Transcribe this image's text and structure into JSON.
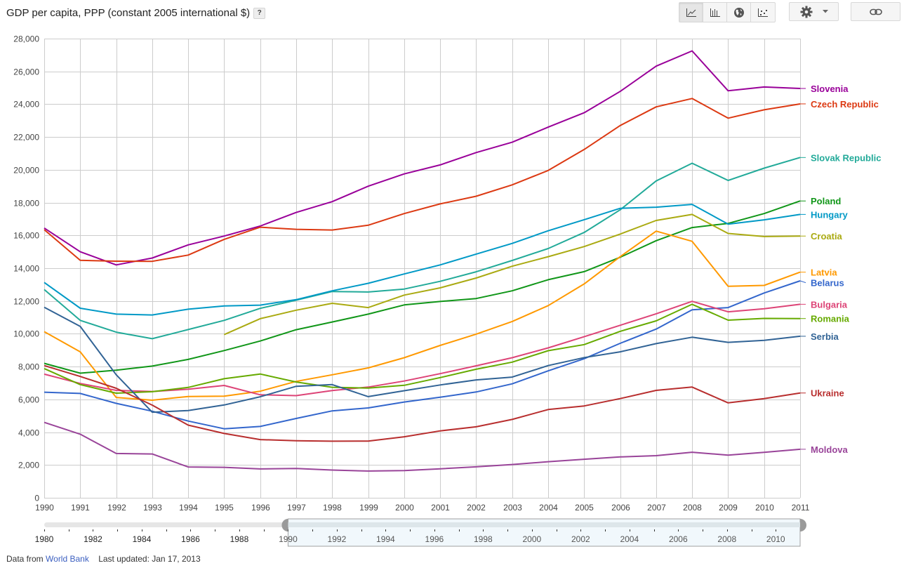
{
  "header": {
    "title": "GDP per capita, PPP (constant 2005 international $)",
    "help_label": "?"
  },
  "toolbar": {
    "chart_types": [
      {
        "name": "line-chart",
        "icon": "line-chart-icon",
        "active": true
      },
      {
        "name": "bar-chart",
        "icon": "bar-chart-icon",
        "active": false
      },
      {
        "name": "map",
        "icon": "globe-icon",
        "active": false
      },
      {
        "name": "scatter-chart",
        "icon": "scatter-chart-icon",
        "active": false
      }
    ],
    "settings_icon": "gear-icon",
    "dropdown_icon": "caret-down-icon",
    "link_icon": "link-icon"
  },
  "footer": {
    "source_prefix": "Data from",
    "source_link": "World Bank",
    "last_updated": "Last updated: Jan 17, 2013"
  },
  "timeline": {
    "range_start": 1980,
    "range_end": 2011,
    "selected_start": 1990,
    "selected_end": 2011,
    "labels": [
      "1980",
      "1982",
      "1984",
      "1986",
      "1988",
      "1990",
      "1992",
      "1994",
      "1996",
      "1998",
      "2000",
      "2002",
      "2004",
      "2006",
      "2008",
      "2010"
    ],
    "colors": {
      "track": "#e6e6e6",
      "selection_fill": "#f1f8fc",
      "selection_border": "#a0a0a0",
      "handle": "#9a9a9a"
    }
  },
  "chart_data": {
    "type": "line",
    "title": "GDP per capita, PPP (constant 2005 international $)",
    "xlabel": "",
    "ylabel": "",
    "x": [
      1990,
      1991,
      1992,
      1993,
      1994,
      1995,
      1996,
      1997,
      1998,
      1999,
      2000,
      2001,
      2002,
      2003,
      2004,
      2005,
      2006,
      2007,
      2008,
      2009,
      2010,
      2011
    ],
    "xlim": [
      1990,
      2011
    ],
    "ylim": [
      0,
      28000
    ],
    "yticks": [
      0,
      2000,
      4000,
      6000,
      8000,
      10000,
      12000,
      14000,
      16000,
      18000,
      20000,
      22000,
      24000,
      26000,
      28000
    ],
    "ytick_labels": [
      "0",
      "2,000",
      "4,000",
      "6,000",
      "8,000",
      "10,000",
      "12,000",
      "14,000",
      "16,000",
      "18,000",
      "20,000",
      "22,000",
      "24,000",
      "26,000",
      "28,000"
    ],
    "xtick_labels": [
      "1990",
      "1991",
      "1992",
      "1993",
      "1994",
      "1995",
      "1996",
      "1997",
      "1998",
      "1999",
      "2000",
      "2001",
      "2002",
      "2003",
      "2004",
      "2005",
      "2006",
      "2007",
      "2008",
      "2009",
      "2010",
      "2011"
    ],
    "grid": true,
    "legend": "right (inline labels at line ends)",
    "series": [
      {
        "name": "Slovenia",
        "color": "#990099",
        "values": [
          16450,
          15000,
          14200,
          14620,
          15420,
          15960,
          16570,
          17400,
          18060,
          19000,
          19750,
          20300,
          21050,
          21680,
          22600,
          23480,
          24780,
          26320,
          27250,
          24820,
          25050,
          24960
        ]
      },
      {
        "name": "Czech Republic",
        "color": "#dc3912",
        "values": [
          16350,
          14480,
          14430,
          14420,
          14800,
          15760,
          16500,
          16370,
          16330,
          16620,
          17330,
          17920,
          18390,
          19080,
          19960,
          21240,
          22700,
          23840,
          24350,
          23150,
          23660,
          24020
        ]
      },
      {
        "name": "Slovak Republic",
        "color": "#22aa99",
        "values": [
          12700,
          10820,
          10100,
          9700,
          10260,
          10820,
          11550,
          12050,
          12580,
          12550,
          12730,
          13200,
          13780,
          14470,
          15200,
          16180,
          17560,
          19320,
          20400,
          19350,
          20100,
          20750
        ]
      },
      {
        "name": "Poland",
        "color": "#109618",
        "values": [
          8200,
          7600,
          7780,
          8030,
          8440,
          8980,
          9560,
          10250,
          10720,
          11200,
          11760,
          11970,
          12150,
          12620,
          13300,
          13790,
          14670,
          15680,
          16480,
          16730,
          17330,
          18100
        ]
      },
      {
        "name": "Hungary",
        "color": "#0099c6",
        "values": [
          13130,
          11560,
          11200,
          11150,
          11500,
          11700,
          11750,
          12080,
          12620,
          13080,
          13650,
          14200,
          14860,
          15510,
          16280,
          16960,
          17650,
          17720,
          17890,
          16690,
          16950,
          17280
        ]
      },
      {
        "name": "Croatia",
        "color": "#aaaa11",
        "values": [
          null,
          null,
          null,
          null,
          null,
          9950,
          10920,
          11440,
          11860,
          11600,
          12360,
          12800,
          13400,
          14120,
          14700,
          15320,
          16080,
          16910,
          17280,
          16120,
          15930,
          15960
        ]
      },
      {
        "name": "Latvia",
        "color": "#ff9900",
        "values": [
          10130,
          8900,
          6120,
          5950,
          6180,
          6200,
          6500,
          7100,
          7500,
          7920,
          8540,
          9290,
          9980,
          10750,
          11720,
          13040,
          14700,
          16260,
          15640,
          12900,
          12950,
          13760
        ]
      },
      {
        "name": "Belarus",
        "color": "#3366cc",
        "values": [
          6440,
          6360,
          5760,
          5280,
          4680,
          4210,
          4350,
          4840,
          5300,
          5480,
          5840,
          6130,
          6450,
          6950,
          7740,
          8480,
          9420,
          10290,
          11460,
          11600,
          12490,
          13230
        ]
      },
      {
        "name": "Bulgaria",
        "color": "#dd4477",
        "values": [
          7540,
          6970,
          6550,
          6480,
          6620,
          6850,
          6280,
          6230,
          6540,
          6750,
          7120,
          7570,
          8050,
          8540,
          9140,
          9820,
          10520,
          11220,
          11980,
          11340,
          11530,
          11800
        ]
      },
      {
        "name": "Romania",
        "color": "#66aa00",
        "values": [
          7880,
          6900,
          6380,
          6470,
          6730,
          7260,
          7550,
          7060,
          6740,
          6690,
          6860,
          7330,
          7840,
          8270,
          8970,
          9340,
          10150,
          10790,
          11800,
          10830,
          10940,
          10930
        ]
      },
      {
        "name": "Serbia",
        "color": "#316395",
        "values": [
          11620,
          10450,
          7500,
          5220,
          5320,
          5660,
          6160,
          6800,
          6900,
          6170,
          6530,
          6880,
          7190,
          7360,
          8060,
          8550,
          8900,
          9400,
          9790,
          9480,
          9600,
          9850
        ]
      },
      {
        "name": "Ukraine",
        "color": "#b82e2e",
        "values": [
          8060,
          7400,
          6680,
          5650,
          4430,
          3920,
          3550,
          3480,
          3450,
          3460,
          3720,
          4080,
          4330,
          4780,
          5380,
          5600,
          6050,
          6550,
          6750,
          5790,
          6050,
          6390
        ]
      },
      {
        "name": "Moldova",
        "color": "#994499",
        "values": [
          4600,
          3880,
          2700,
          2670,
          1880,
          1860,
          1760,
          1790,
          1690,
          1630,
          1660,
          1770,
          1890,
          2030,
          2200,
          2350,
          2490,
          2570,
          2780,
          2600,
          2770,
          2960
        ]
      }
    ],
    "legend_labels": [
      {
        "name": "Slovenia",
        "color": "#990099"
      },
      {
        "name": "Czech Republic",
        "color": "#dc3912"
      },
      {
        "name": "Slovak Republic",
        "color": "#22aa99"
      },
      {
        "name": "Poland",
        "color": "#109618"
      },
      {
        "name": "Hungary",
        "color": "#0099c6"
      },
      {
        "name": "Croatia",
        "color": "#aaaa11"
      },
      {
        "name": "Latvia",
        "color": "#ff9900"
      },
      {
        "name": "Belarus",
        "color": "#3366cc"
      },
      {
        "name": "Bulgaria",
        "color": "#dd4477"
      },
      {
        "name": "Romania",
        "color": "#66aa00"
      },
      {
        "name": "Serbia",
        "color": "#316395"
      },
      {
        "name": "Ukraine",
        "color": "#b82e2e"
      },
      {
        "name": "Moldova",
        "color": "#994499"
      }
    ]
  }
}
